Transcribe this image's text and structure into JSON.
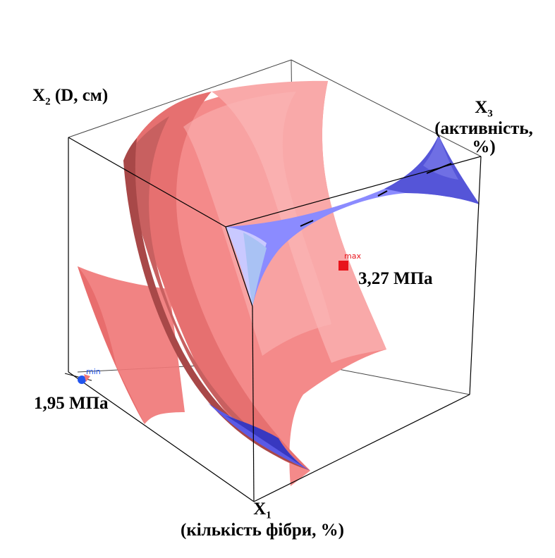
{
  "axes": {
    "x1": {
      "symbol": "X",
      "index": "1",
      "caption": "(кількість фібри, %)"
    },
    "x2": {
      "symbol": "X",
      "index": "2",
      "caption": "(D, см)"
    },
    "x3": {
      "symbol": "X",
      "index": "3",
      "caption_line1": "(активність,",
      "caption_line2": "%)"
    }
  },
  "markers": {
    "max": {
      "tag": "max",
      "value_label": "3,27 МПа",
      "color": "#e8141b"
    },
    "min": {
      "tag": "min",
      "value_label": "1,95 МПа",
      "color": "#2255ee"
    }
  },
  "colors": {
    "red_surface": "#f07878",
    "red_surface_light": "#f7a4a4",
    "red_surface_dark": "#c25858",
    "blue_surface": "#7b7bff",
    "blue_surface_dark": "#4f4fd6",
    "blue_surface_light": "#c8c8ff",
    "cube_edge": "#000000"
  }
}
